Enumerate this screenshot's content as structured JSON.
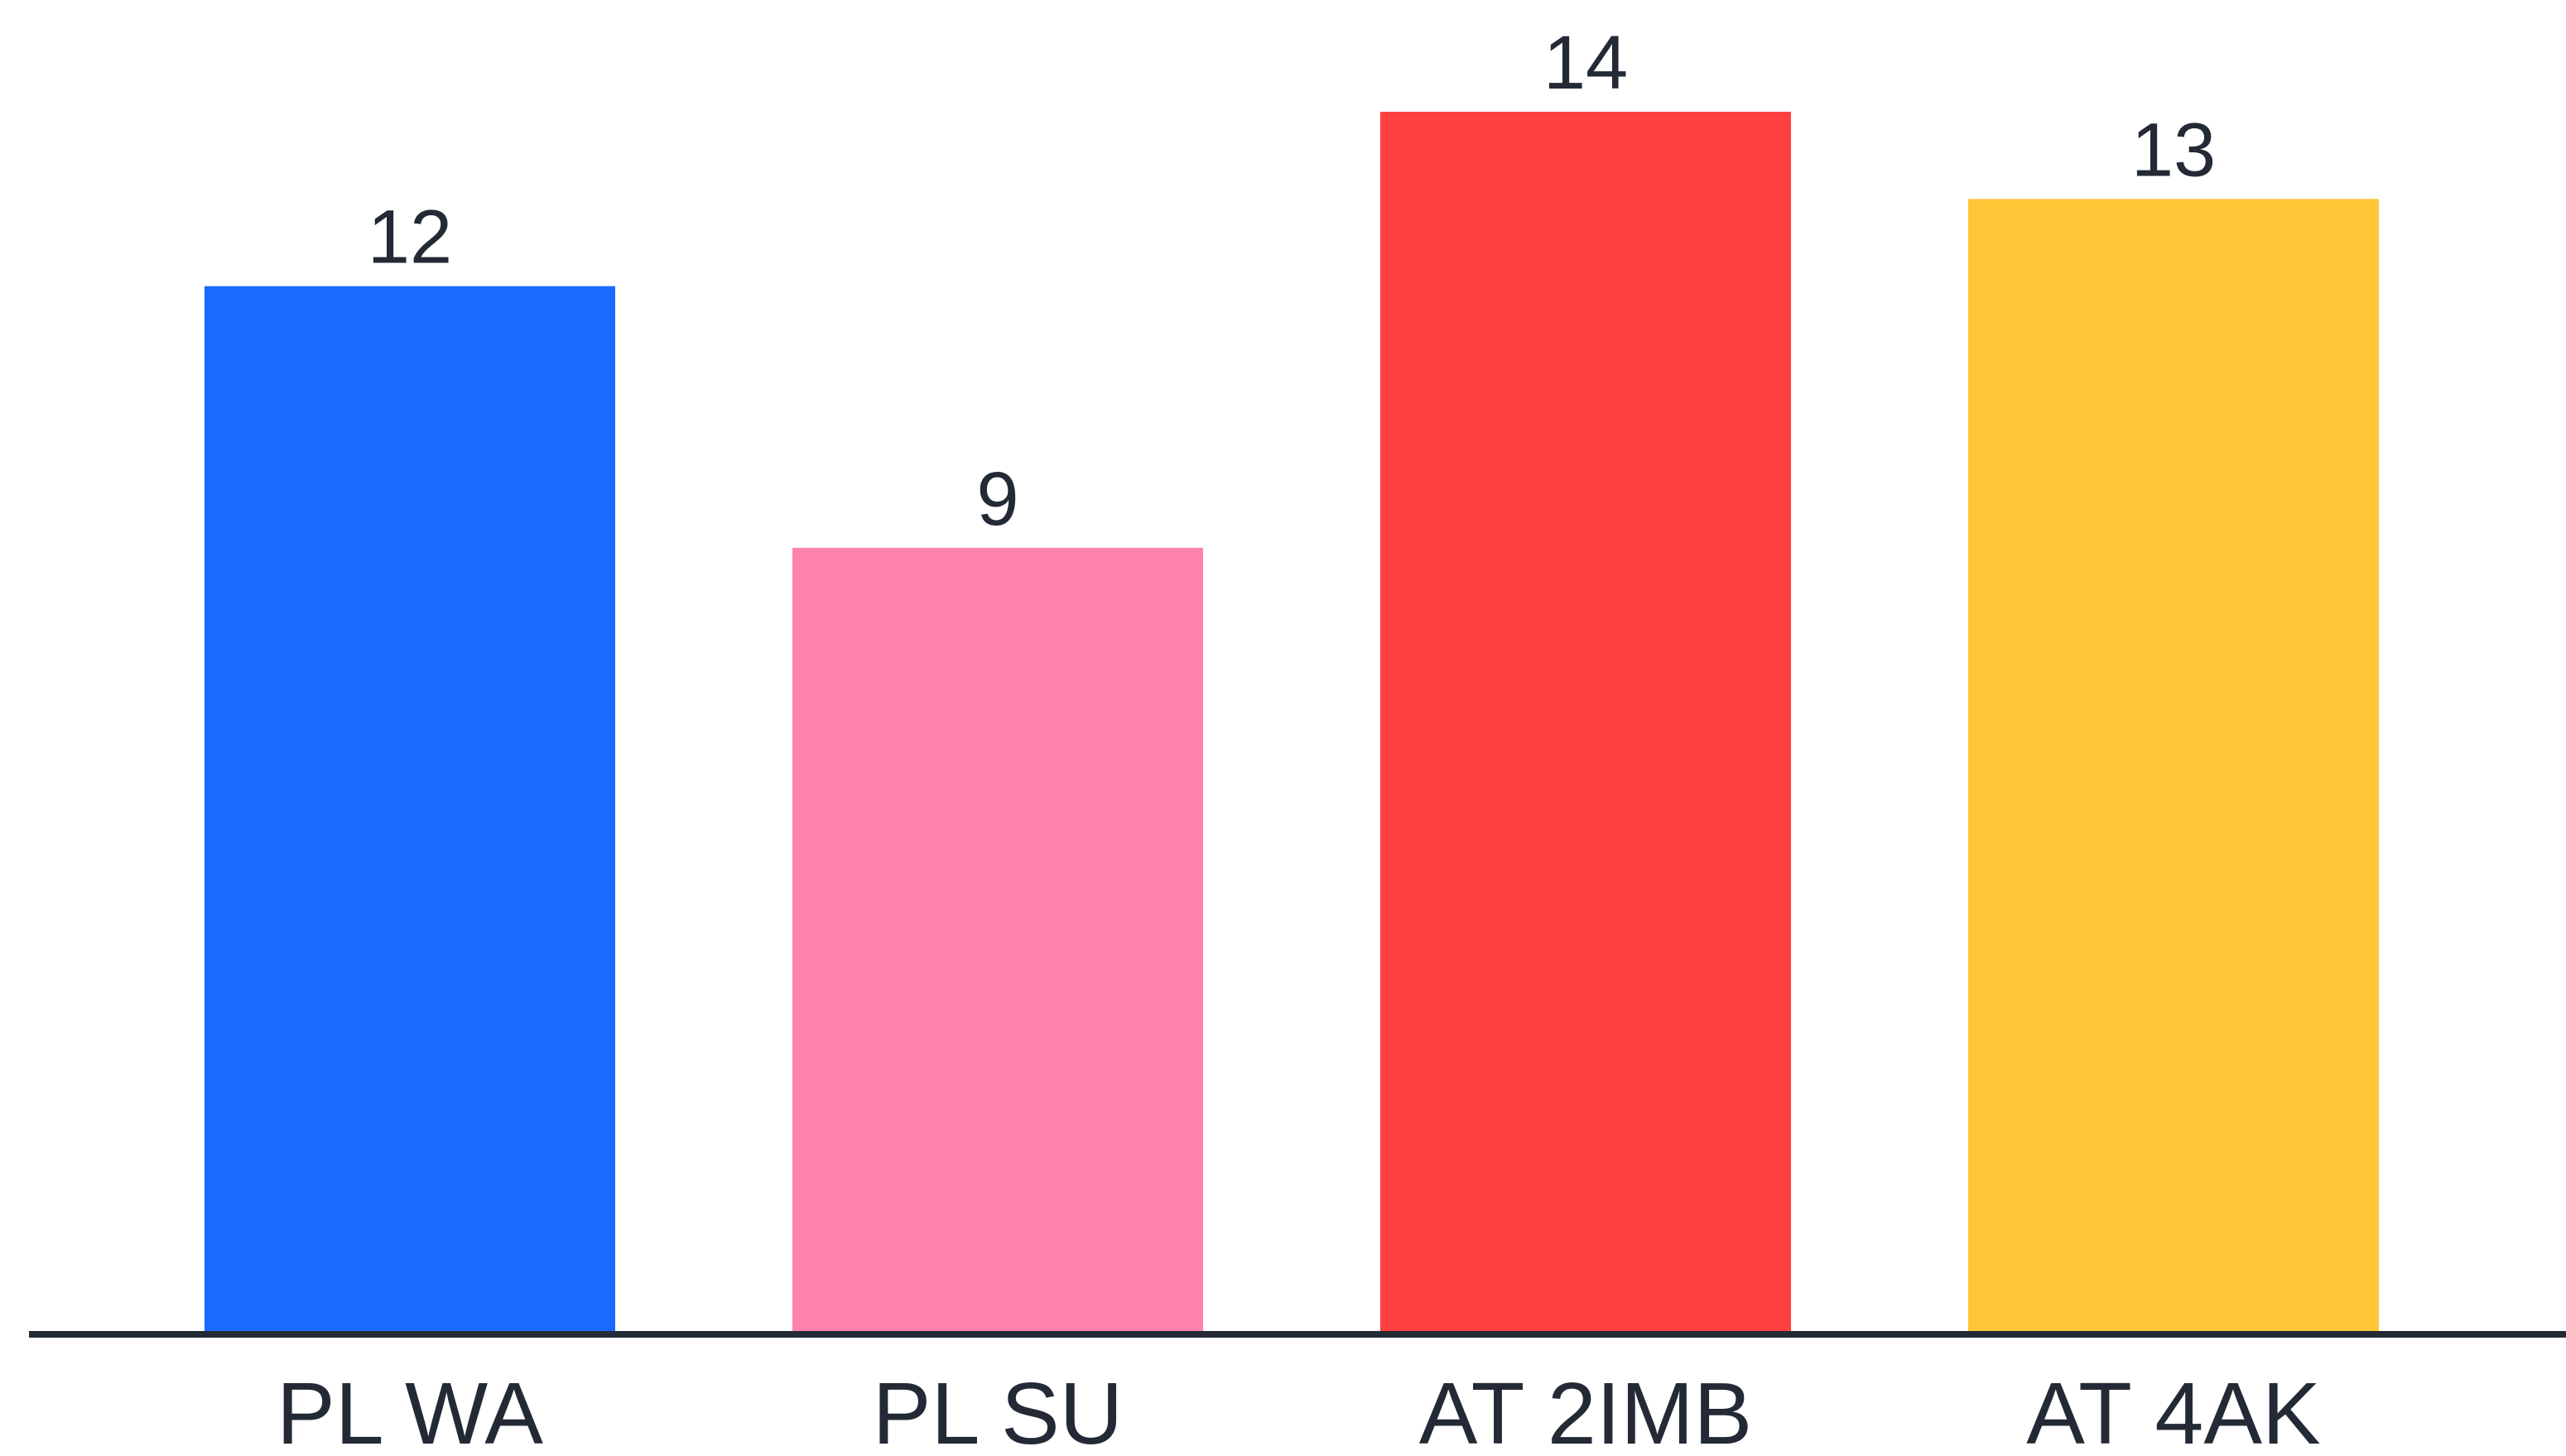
{
  "chart_data": {
    "type": "bar",
    "categories": [
      "PL WA",
      "PL SU",
      "AT 2IMB",
      "AT 4AK"
    ],
    "values": [
      12,
      9,
      14,
      13
    ],
    "colors": [
      "#1a6aff",
      "#ff82aa",
      "#ff4040",
      "#ffc637"
    ],
    "title": "",
    "xlabel": "",
    "ylabel": "",
    "ylim": [
      0,
      14
    ],
    "grid": false,
    "legend": "none",
    "data_labels": true,
    "axis_color": "#232a36",
    "text_color": "#232a36"
  }
}
